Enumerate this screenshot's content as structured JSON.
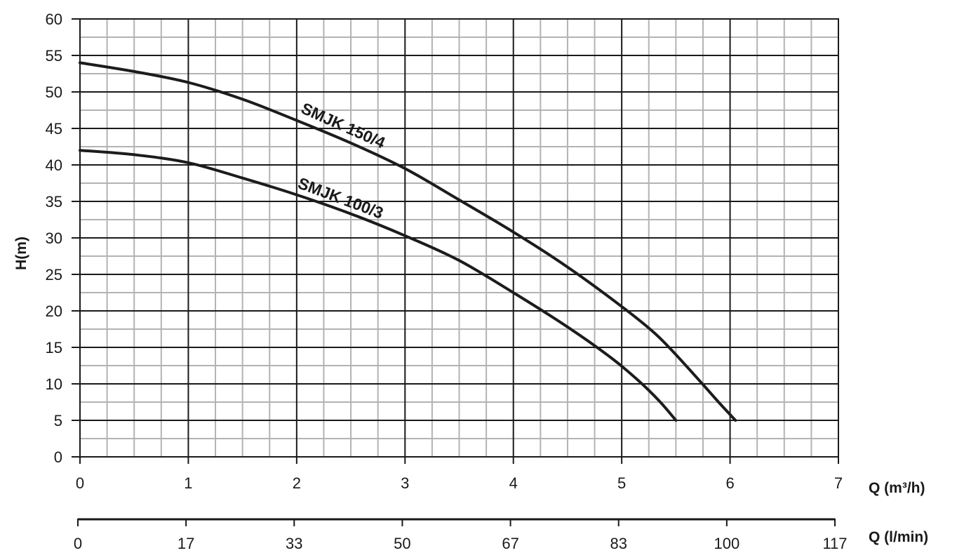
{
  "chart_data": {
    "type": "line",
    "xlabel": "Q (m³/h)",
    "ylabel": "H(m)",
    "secondary_xlabel": "Q (l/min)",
    "xlim": [
      0,
      7
    ],
    "ylim": [
      0,
      60
    ],
    "x_ticks": [
      "0",
      "1",
      "2",
      "3",
      "4",
      "5",
      "6",
      "7"
    ],
    "y_ticks": [
      "0",
      "5",
      "10",
      "15",
      "20",
      "25",
      "30",
      "35",
      "40",
      "45",
      "50",
      "55",
      "60"
    ],
    "secondary_x_ticks": [
      "0",
      "17",
      "33",
      "50",
      "67",
      "83",
      "100",
      "117"
    ],
    "grid": true,
    "series": [
      {
        "name": "SMJK 150/4",
        "x": [
          0,
          0.5,
          1,
          1.5,
          2,
          2.5,
          3,
          3.5,
          4,
          4.5,
          5,
          5.3,
          5.5,
          5.75,
          5.9,
          6.05
        ],
        "y": [
          54,
          52.8,
          51.3,
          49,
          46.1,
          43,
          39.5,
          35.2,
          30.8,
          26,
          20.6,
          17,
          14,
          9.9,
          7.4,
          5
        ]
      },
      {
        "name": "SMJK 100/3",
        "x": [
          0,
          0.5,
          1,
          1.5,
          2,
          2.5,
          3,
          3.5,
          4,
          4.5,
          4.9,
          5.15,
          5.35,
          5.5
        ],
        "y": [
          42,
          41.4,
          40.3,
          38.2,
          35.9,
          33.3,
          30.3,
          26.9,
          22.5,
          17.8,
          13.6,
          10.5,
          7.6,
          5
        ]
      }
    ]
  }
}
